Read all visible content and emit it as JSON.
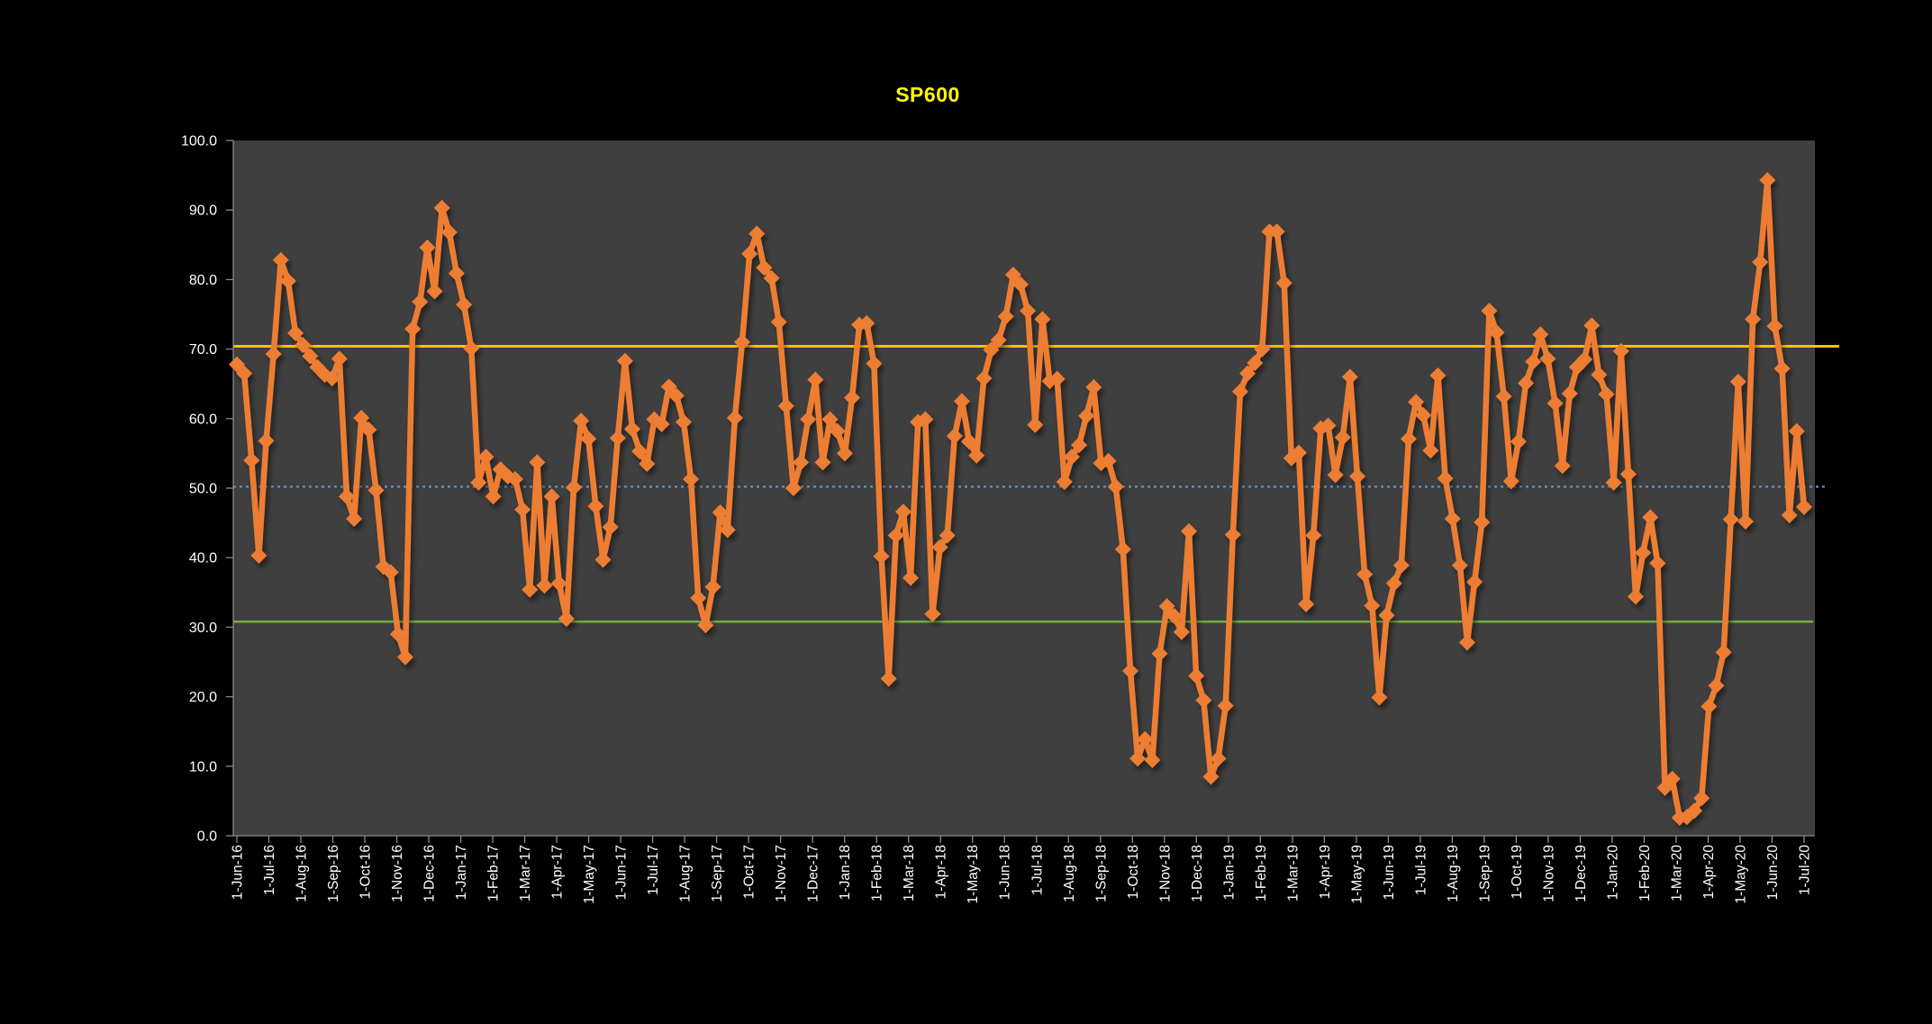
{
  "title": "SP600",
  "title_color": "#FFFF00",
  "chart_data": {
    "type": "line",
    "title": "SP600",
    "xlabel": "",
    "ylabel": "",
    "ylim": [
      0,
      100
    ],
    "grid": false,
    "legend": "none",
    "frequency": "weekly",
    "x_start_label": "1-Jun-16",
    "x_end_label": "1-Jul-20",
    "x_tick_labels": [
      "1-Jun-16",
      "1-Jul-16",
      "1-Aug-16",
      "1-Sep-16",
      "1-Oct-16",
      "1-Nov-16",
      "1-Dec-16",
      "1-Jan-17",
      "1-Feb-17",
      "1-Mar-17",
      "1-Apr-17",
      "1-May-17",
      "1-Jun-17",
      "1-Jul-17",
      "1-Aug-17",
      "1-Sep-17",
      "1-Oct-17",
      "1-Nov-17",
      "1-Dec-17",
      "1-Jan-18",
      "1-Feb-18",
      "1-Mar-18",
      "1-Apr-18",
      "1-May-18",
      "1-Jun-18",
      "1-Jul-18",
      "1-Aug-18",
      "1-Sep-18",
      "1-Oct-18",
      "1-Nov-18",
      "1-Dec-18",
      "1-Jan-19",
      "1-Feb-19",
      "1-Mar-19",
      "1-Apr-19",
      "1-May-19",
      "1-Jun-19",
      "1-Jul-19",
      "1-Aug-19",
      "1-Sep-19",
      "1-Oct-19",
      "1-Nov-19",
      "1-Dec-19",
      "1-Jan-20",
      "1-Feb-20",
      "1-Mar-20",
      "1-Apr-20",
      "1-May-20",
      "1-Jun-20",
      "1-Jul-20"
    ],
    "y_tick_labels": [
      "100.0",
      "90.0",
      "80.0",
      "70.0",
      "60.0",
      "50.0",
      "40.0",
      "30.0",
      "20.0",
      "10.0",
      "0.0"
    ],
    "series": [
      {
        "name": "SP600",
        "color": "#ED7D31",
        "marker": "diamond",
        "values": [
          67.8,
          66.5,
          54.0,
          40.3,
          56.8,
          69.3,
          82.8,
          79.8,
          72.3,
          70.6,
          69.0,
          67.4,
          66.3,
          65.8,
          68.6,
          48.8,
          45.6,
          60.1,
          58.4,
          49.7,
          38.7,
          37.9,
          29.0,
          25.7,
          72.9,
          76.8,
          84.6,
          78.3,
          90.3,
          86.8,
          80.9,
          76.4,
          70.1,
          50.8,
          54.5,
          48.8,
          52.7,
          51.7,
          51.3,
          46.9,
          35.4,
          53.7,
          36.0,
          48.8,
          36.3,
          31.2,
          50.1,
          59.7,
          57.1,
          47.4,
          39.7,
          44.4,
          57.2,
          68.3,
          58.5,
          55.3,
          53.5,
          59.9,
          59.2,
          64.6,
          63.3,
          59.5,
          51.3,
          34.2,
          30.3,
          35.8,
          46.5,
          44.0,
          60.1,
          71.0,
          83.7,
          86.6,
          81.7,
          80.2,
          73.9,
          61.8,
          50.0,
          53.7,
          59.9,
          65.6,
          53.7,
          59.9,
          58.2,
          55.0,
          63.0,
          73.5,
          73.7,
          67.9,
          40.2,
          22.6,
          43.2,
          46.6,
          37.1,
          59.5,
          59.9,
          31.9,
          41.5,
          43.2,
          57.5,
          62.5,
          56.7,
          54.7,
          65.8,
          69.9,
          71.3,
          74.7,
          80.7,
          79.3,
          75.5,
          59.1,
          74.3,
          65.4,
          65.7,
          50.9,
          54.5,
          56.2,
          60.4,
          64.5,
          53.6,
          53.9,
          50.2,
          41.2,
          23.7,
          11.1,
          13.9,
          10.9,
          26.2,
          33.0,
          31.6,
          29.3,
          43.8,
          23.0,
          19.5,
          8.5,
          11.1,
          18.7,
          43.3,
          63.9,
          66.5,
          68.0,
          70.0,
          86.9,
          86.9,
          79.5,
          54.3,
          55.1,
          33.3,
          43.2,
          58.6,
          59.0,
          51.9,
          57.3,
          66.0,
          51.7,
          37.6,
          33.1,
          19.9,
          31.7,
          36.3,
          38.9,
          57.1,
          62.4,
          60.5,
          55.4,
          66.2,
          51.4,
          45.6,
          38.9,
          27.8,
          36.5,
          45.1,
          75.5,
          72.4,
          63.2,
          51.0,
          56.7,
          65.1,
          68.2,
          72.1,
          68.6,
          62.2,
          53.2,
          63.6,
          67.4,
          68.5,
          73.4,
          66.3,
          63.5,
          50.8,
          69.7,
          52.0,
          34.4,
          40.7,
          45.8,
          39.2,
          6.9,
          8.2,
          2.6,
          2.7,
          3.6,
          5.4,
          18.6,
          21.6,
          26.4,
          45.5,
          65.3,
          45.2,
          74.3,
          82.5,
          94.3,
          73.3,
          67.2,
          46.1,
          58.2,
          47.3
        ]
      }
    ],
    "reference_lines": [
      {
        "name": "upper-band",
        "value": 70.4,
        "color": "#FFC000",
        "style": "solid",
        "width": 3
      },
      {
        "name": "mid-band",
        "value": 50.2,
        "color": "#5B9BD5",
        "style": "dotted",
        "width": 2.2
      },
      {
        "name": "lower-band",
        "value": 30.8,
        "color": "#70AD47",
        "style": "solid",
        "width": 2.5
      }
    ],
    "colors": {
      "page_bg": "#000000",
      "plot_bg": "#3F3F3F",
      "axis": "#8A8A8A",
      "tick_label": "#FFFFFF"
    }
  }
}
